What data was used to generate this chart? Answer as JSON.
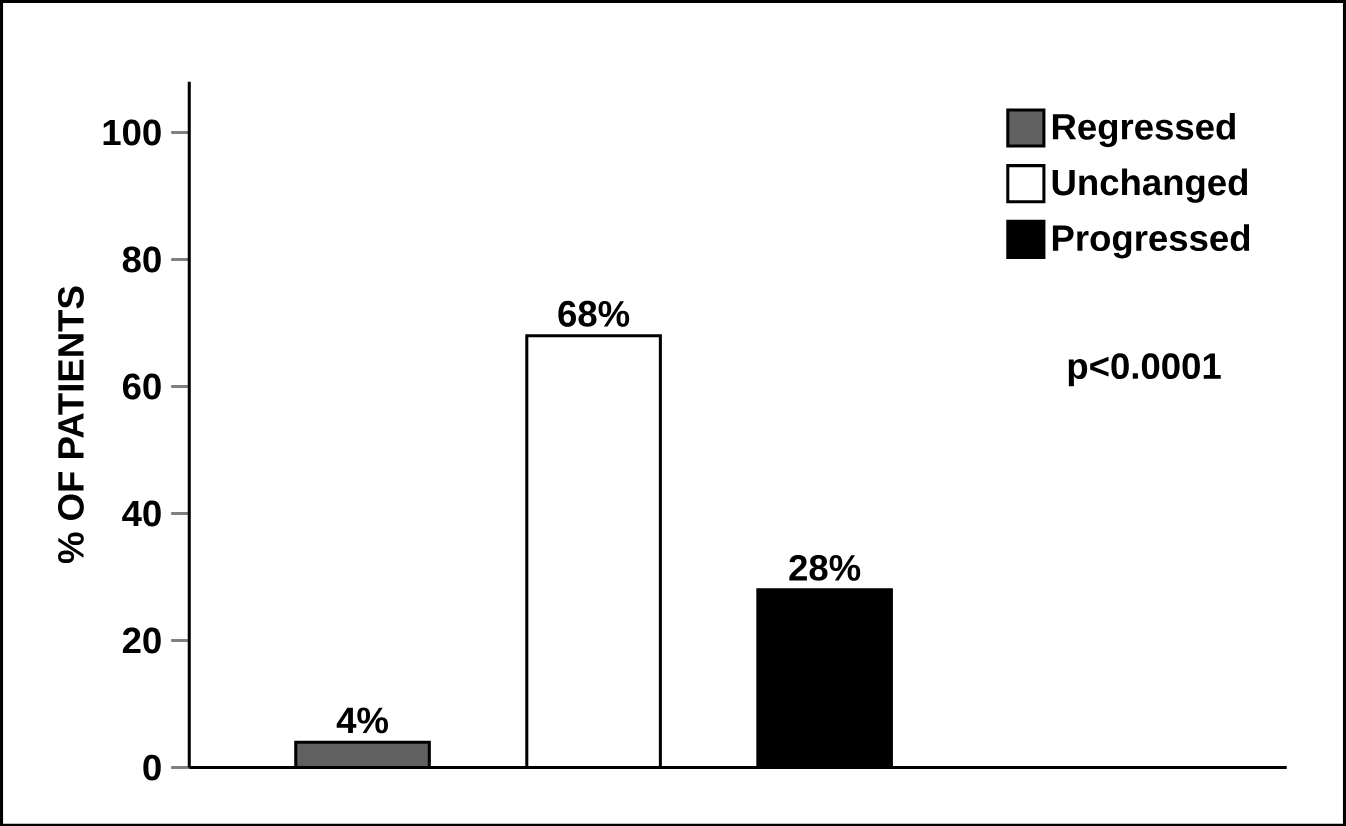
{
  "chart_data": {
    "type": "bar",
    "ylabel": "% OF PATIENTS",
    "categories": [
      null,
      null,
      null,
      null,
      null
    ],
    "series": [
      {
        "name": "Regressed",
        "color": "#606060",
        "values": [
          4,
          null,
          null,
          null,
          null
        ],
        "value_labels": [
          "4%",
          null,
          null,
          null,
          null
        ]
      },
      {
        "name": "Unchanged",
        "color": "#ffffff",
        "values": [
          null,
          68,
          null,
          null,
          null
        ],
        "value_labels": [
          null,
          "68%",
          null,
          null,
          null
        ]
      },
      {
        "name": "Progressed",
        "color": "#000000",
        "values": [
          null,
          null,
          28,
          null,
          null
        ],
        "value_labels": [
          null,
          null,
          "28%",
          null,
          null
        ]
      }
    ],
    "ylim": [
      0,
      108
    ],
    "yticks": [
      0,
      20,
      40,
      60,
      80,
      100
    ],
    "grid": false,
    "legend": "top right",
    "annotations": [
      "p<0.0001"
    ]
  }
}
